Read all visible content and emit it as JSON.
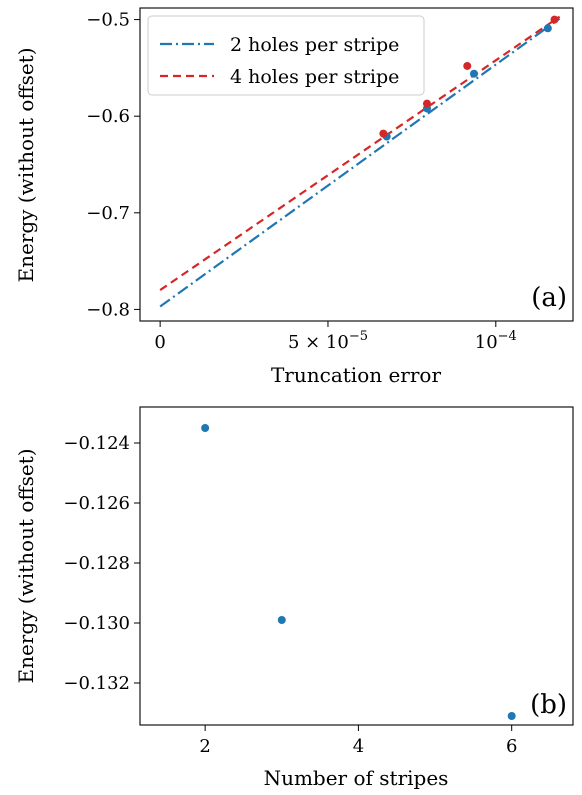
{
  "colors": {
    "blue": "#1f77b4",
    "red": "#d62728"
  },
  "chart_data": [
    {
      "type": "scatter",
      "panel_label": "(a)",
      "xlabel": "Truncation error",
      "ylabel": "Energy (without offset)",
      "xlim": [
        -6e-06,
        0.000123
      ],
      "ylim": [
        -0.812,
        -0.488
      ],
      "grid": false,
      "legend_position": "top-left",
      "xticks": [
        0,
        5e-05,
        0.0001
      ],
      "xtick_labels": [
        "0",
        "5 × 10−5",
        "10−4"
      ],
      "yticks": [
        -0.8,
        -0.7,
        -0.6,
        -0.5
      ],
      "ytick_labels": [
        "−0.8",
        "−0.7",
        "−0.6",
        "−0.5"
      ],
      "series": [
        {
          "name": "2 holes per stripe",
          "color": "#1f77b4",
          "line_style": "dash-dot",
          "points": [
            {
              "x": 6.75e-05,
              "y": -0.621
            },
            {
              "x": 7.95e-05,
              "y": -0.592
            },
            {
              "x": 9.35e-05,
              "y": -0.556
            },
            {
              "x": 0.0001155,
              "y": -0.509
            }
          ],
          "fit_line": [
            [
              0,
              -0.797
            ],
            [
              0.000119,
              -0.499
            ]
          ]
        },
        {
          "name": "4 holes per stripe",
          "color": "#d62728",
          "line_style": "dashed",
          "points": [
            {
              "x": 6.65e-05,
              "y": -0.618
            },
            {
              "x": 7.95e-05,
              "y": -0.587
            },
            {
              "x": 9.15e-05,
              "y": -0.548
            },
            {
              "x": 0.0001175,
              "y": -0.5
            }
          ],
          "fit_line": [
            [
              0,
              -0.78
            ],
            [
              0.000119,
              -0.497
            ]
          ]
        }
      ]
    },
    {
      "type": "scatter",
      "panel_label": "(b)",
      "xlabel": "Number of stripes",
      "ylabel": "Energy (without offset)",
      "xlim": [
        1.15,
        6.8
      ],
      "ylim": [
        -0.1334,
        -0.1228
      ],
      "grid": false,
      "xticks": [
        2,
        4,
        6
      ],
      "xtick_labels": [
        "2",
        "4",
        "6"
      ],
      "yticks": [
        -0.124,
        -0.126,
        -0.128,
        -0.13,
        -0.132
      ],
      "ytick_labels": [
        "−0.124",
        "−0.126",
        "−0.128",
        "−0.130",
        "−0.132"
      ],
      "series": [
        {
          "color": "#1f77b4",
          "points": [
            {
              "x": 2,
              "y": -0.1235
            },
            {
              "x": 3,
              "y": -0.1299
            },
            {
              "x": 6,
              "y": -0.1331
            }
          ]
        }
      ]
    }
  ]
}
